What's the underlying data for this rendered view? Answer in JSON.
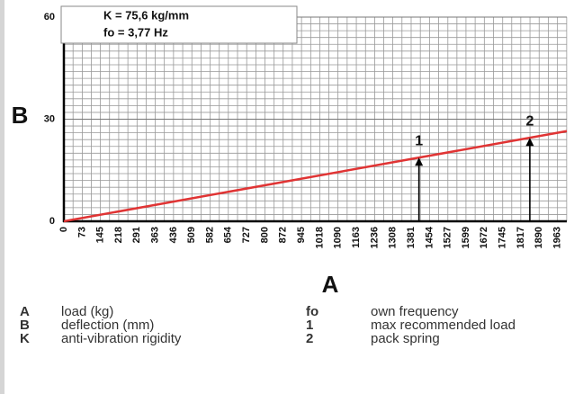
{
  "chart_data": {
    "type": "line",
    "x_label": "A",
    "y_label": "B",
    "info_box": [
      "K = 75,6 kg/mm",
      "fo = 3,77 Hz"
    ],
    "series": [
      {
        "color": "#e03434",
        "x": [
          0,
          2000
        ],
        "values": [
          0,
          26.5
        ]
      }
    ],
    "xlim": [
      0,
      2000
    ],
    "ylim": [
      0,
      60
    ],
    "xticks": [
      0,
      73,
      145,
      218,
      291,
      363,
      436,
      509,
      582,
      654,
      727,
      800,
      872,
      945,
      1018,
      1090,
      1163,
      1236,
      1308,
      1381,
      1454,
      1527,
      1599,
      1672,
      1745,
      1817,
      1890,
      1963
    ],
    "yticks": [
      0,
      30,
      60
    ],
    "markers": [
      {
        "label": "1",
        "x": 1412,
        "y": 18.7
      },
      {
        "label": "2",
        "x": 1853,
        "y": 24.5
      }
    ],
    "grid": true
  },
  "legend": [
    {
      "key": "A",
      "text": "load (kg)"
    },
    {
      "key": "B",
      "text": "deflection (mm)"
    },
    {
      "key": "K",
      "text": "anti-vibration rigidity"
    },
    {
      "key": "fo",
      "text": "own frequency"
    },
    {
      "key": "1",
      "text": "max recommended load"
    },
    {
      "key": "2",
      "text": "pack spring"
    }
  ]
}
